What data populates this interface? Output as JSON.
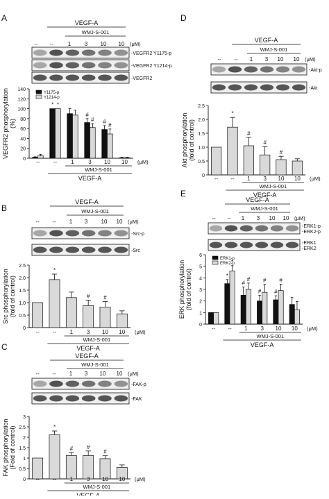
{
  "panels": [
    {
      "id": "A",
      "letter": "A",
      "top": {
        "vegf": "VEGF-A",
        "wmj": "WMJ-S-001",
        "um": "(μM)",
        "conds": [
          "--",
          "--",
          "1",
          "3",
          "10",
          "10"
        ]
      },
      "blots": [
        "VEGFR2 Y1175-p",
        "VEGFR2 Y1214-p",
        "VEGFR2"
      ],
      "blot_style": "right"
    },
    {
      "id": "B",
      "letter": "B",
      "top": {
        "vegf": "VEGF-A",
        "wmj": "WMJ-S-001",
        "um": "(μM)",
        "conds": [
          "--",
          "--",
          "1",
          "3",
          "10",
          "10"
        ]
      },
      "blots": [
        "Src-p",
        "Src"
      ],
      "blot_style": "right"
    },
    {
      "id": "C",
      "letter": "C",
      "top": {
        "vegf": "VEGF-A",
        "wmj": "WMJ-S-001",
        "um": "(μM)",
        "conds": [
          "--",
          "--",
          "1",
          "3",
          "10",
          "10"
        ]
      },
      "blots": [
        "FAK-p",
        "FAK"
      ],
      "blot_style": "right"
    },
    {
      "id": "D",
      "letter": "D",
      "top": {
        "vegf": "VEGF-A",
        "wmj": "WMJ-S-001",
        "um": "(μM)",
        "conds": [
          "--",
          "--",
          "1",
          "3",
          "10",
          "10"
        ]
      },
      "blots": [
        "Akt-p",
        "Akt"
      ],
      "blot_style": "right"
    },
    {
      "id": "E",
      "letter": "E",
      "top": {
        "vegf": "VEGF-A",
        "wmj": "WMJ-S-001",
        "um": "(μM)",
        "conds": [
          "--",
          "--",
          "1",
          "3",
          "10",
          "10"
        ]
      },
      "blots": [
        "ERK1-p\nERK2-p",
        "ERK1\nERK2"
      ],
      "blot_style": "right"
    }
  ],
  "chart_data": [
    {
      "panel": "A",
      "type": "bar",
      "ylabel": "VEGFR2 phosphorylation (%)",
      "ylim": [
        0,
        140
      ],
      "yticks": [
        0,
        20,
        40,
        60,
        80,
        100,
        120,
        140
      ],
      "categories": [
        "--",
        "--",
        "1",
        "3",
        "10",
        "10"
      ],
      "bottom": {
        "wmj": "WMJ-S-001",
        "vegf": "VEGF-A",
        "um": "(μM)"
      },
      "series": [
        {
          "name": "Y1175-p",
          "color": "#111111",
          "values": [
            2,
            100,
            90,
            72,
            58,
            1
          ],
          "errors": [
            1,
            0,
            10,
            8,
            8,
            1
          ],
          "marks": [
            "",
            "*",
            "",
            "#",
            "#",
            ""
          ]
        },
        {
          "name": "Y1214-p",
          "color": "#d9d9d9",
          "values": [
            5,
            100,
            87,
            62,
            49,
            1
          ],
          "errors": [
            3,
            0,
            10,
            8,
            10,
            1
          ],
          "marks": [
            "",
            "*",
            "",
            "#",
            "#",
            ""
          ]
        }
      ],
      "legend": "upper-left"
    },
    {
      "panel": "B",
      "type": "bar",
      "ylabel": "Src phosphorylation (fold of control)",
      "ylim": [
        0,
        2.5
      ],
      "yticks": [
        0,
        0.5,
        1.0,
        1.5,
        2.0,
        2.5
      ],
      "categories": [
        "--",
        "--",
        "1",
        "3",
        "10",
        "10"
      ],
      "bottom": {
        "wmj": "WMJ-S-001",
        "vegf": "VEGF-A",
        "um": "(μM)"
      },
      "series": [
        {
          "name": "",
          "color": "#d9d9d9",
          "values": [
            1.0,
            1.92,
            1.2,
            0.88,
            0.82,
            0.55
          ],
          "errors": [
            0,
            0.22,
            0.22,
            0.22,
            0.22,
            0.12
          ],
          "marks": [
            "",
            "*",
            "",
            "#",
            "#",
            ""
          ]
        }
      ]
    },
    {
      "panel": "C",
      "type": "bar",
      "ylabel": "FAK phosphorylation (Fold of control)",
      "ylim": [
        0,
        3
      ],
      "yticks": [
        0,
        0.5,
        1,
        1.5,
        2,
        2.5,
        3
      ],
      "categories": [
        "--",
        "--",
        "1",
        "3",
        "10",
        "10"
      ],
      "bottom": {
        "wmj": "WMJ-S-001",
        "vegf": "VEGF-A",
        "um": "(μM)"
      },
      "series": [
        {
          "name": "",
          "color": "#d9d9d9",
          "values": [
            1.0,
            2.12,
            1.12,
            1.12,
            0.97,
            0.55
          ],
          "errors": [
            0,
            0.18,
            0.15,
            0.22,
            0.14,
            0.12
          ],
          "marks": [
            "",
            "*",
            "#",
            "#",
            "#",
            ""
          ]
        }
      ]
    },
    {
      "panel": "D",
      "type": "bar",
      "ylabel": "Akt phosphorylation (fold of control)",
      "ylim": [
        0,
        2.5
      ],
      "yticks": [
        0,
        0.5,
        1.0,
        1.5,
        2.0,
        2.5
      ],
      "categories": [
        "--",
        "--",
        "1",
        "3",
        "10",
        "10"
      ],
      "bottom": {
        "wmj": "WMJ-S-001",
        "vegf": "VEGF-A",
        "um": "(μM)"
      },
      "series": [
        {
          "name": "",
          "color": "#d9d9d9",
          "values": [
            1.0,
            1.72,
            1.05,
            0.72,
            0.55,
            0.5
          ],
          "errors": [
            0,
            0.35,
            0.3,
            0.3,
            0.12,
            0.08
          ],
          "marks": [
            "",
            "*",
            "#",
            "#",
            "#",
            ""
          ]
        }
      ]
    },
    {
      "panel": "E",
      "type": "bar",
      "ylabel": "ERK phosphorylation (fold of control)",
      "ylim": [
        0,
        6
      ],
      "yticks": [
        0,
        1,
        2,
        3,
        4,
        5,
        6
      ],
      "categories": [
        "--",
        "--",
        "1",
        "3",
        "10",
        "10"
      ],
      "bottom": {
        "wmj": "WMJ-S-001",
        "vegf": "VEGF-A",
        "um": "(μM)"
      },
      "series": [
        {
          "name": "ERK1-p",
          "color": "#111111",
          "values": [
            1.0,
            3.5,
            2.5,
            2.0,
            2.1,
            1.7
          ],
          "errors": [
            0,
            0.35,
            0.7,
            0.5,
            0.35,
            0.6
          ],
          "marks": [
            "",
            "*",
            "#",
            "#",
            "#",
            ""
          ]
        },
        {
          "name": "ERK2-p",
          "color": "#d9d9d9",
          "values": [
            1.0,
            4.6,
            3.0,
            2.75,
            2.9,
            1.25
          ],
          "errors": [
            0,
            0.45,
            0.55,
            0.7,
            0.55,
            0.7
          ],
          "marks": [
            "",
            "*",
            "#",
            "#",
            "#",
            ""
          ]
        }
      ],
      "legend": "upper-left"
    }
  ]
}
